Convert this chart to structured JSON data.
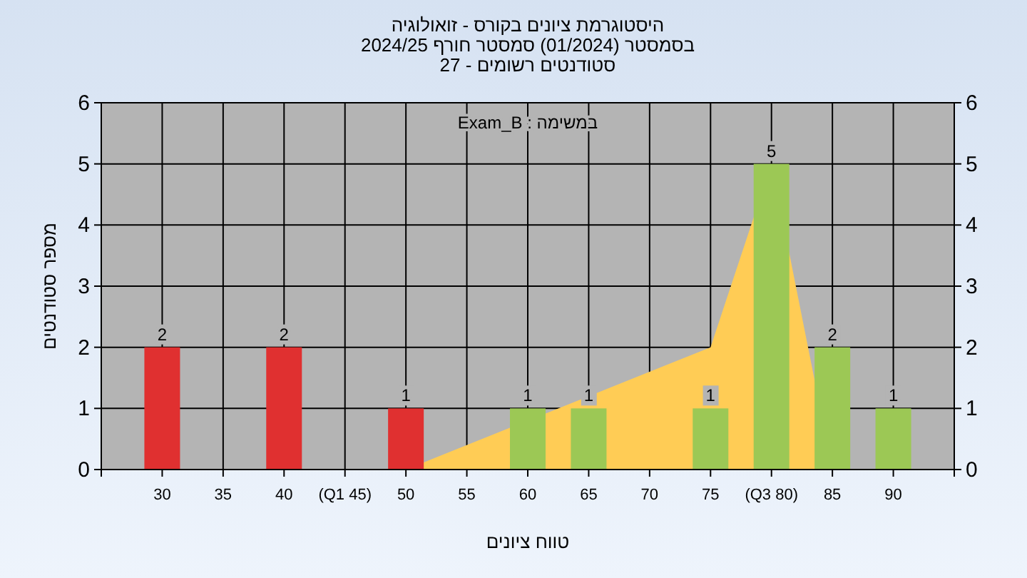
{
  "chart_data": {
    "type": "bar",
    "title": "היסטוגרמת ציונים בקורס - זואולוגיה",
    "subtitle": "בסמסטר  (01/2024)  סמסטר חורף 2024/25\nסטודנטים רשומים - 27",
    "xlabel": "טווח ציונים",
    "ylabel": "מספר סטודנטים",
    "annotations": [
      "במשימה : Exam_B"
    ],
    "x": [
      30,
      40,
      50,
      60,
      65,
      75,
      80,
      85,
      90
    ],
    "series": [
      {
        "type": "area",
        "color": "#ffcc55",
        "x": [
          50,
          75,
          80,
          85
        ],
        "values": [
          0,
          2,
          5,
          0
        ]
      },
      {
        "colors": [
          "#e03030",
          "#e03030",
          "#e03030",
          "#9cc855",
          "#9cc855",
          "#9cc855",
          "#9cc855",
          "#9cc855",
          "#9cc855"
        ],
        "values": [
          2,
          2,
          1,
          1,
          1,
          1,
          5,
          2,
          1
        ],
        "value_labels": [
          "2",
          "2",
          "1",
          "1",
          "1",
          "1",
          "5",
          "2",
          "1"
        ]
      }
    ],
    "xlim": [
      25,
      95
    ],
    "xticks": [
      {
        "value": 25,
        "label": null
      },
      30,
      35,
      40,
      {
        "value": 45,
        "label": "(Q1 45)"
      },
      50,
      55,
      60,
      65,
      70,
      75,
      {
        "value": 80,
        "label": "(Q3 80)"
      },
      85,
      90,
      {
        "value": 95,
        "label": null
      }
    ],
    "ylim": [
      0,
      6
    ],
    "yticks": [
      0,
      1,
      2,
      3,
      4,
      5,
      6
    ],
    "y2lim": [
      0,
      6
    ],
    "y2ticks": [
      0,
      1,
      2,
      3,
      4,
      5,
      6
    ],
    "grid": true
  }
}
